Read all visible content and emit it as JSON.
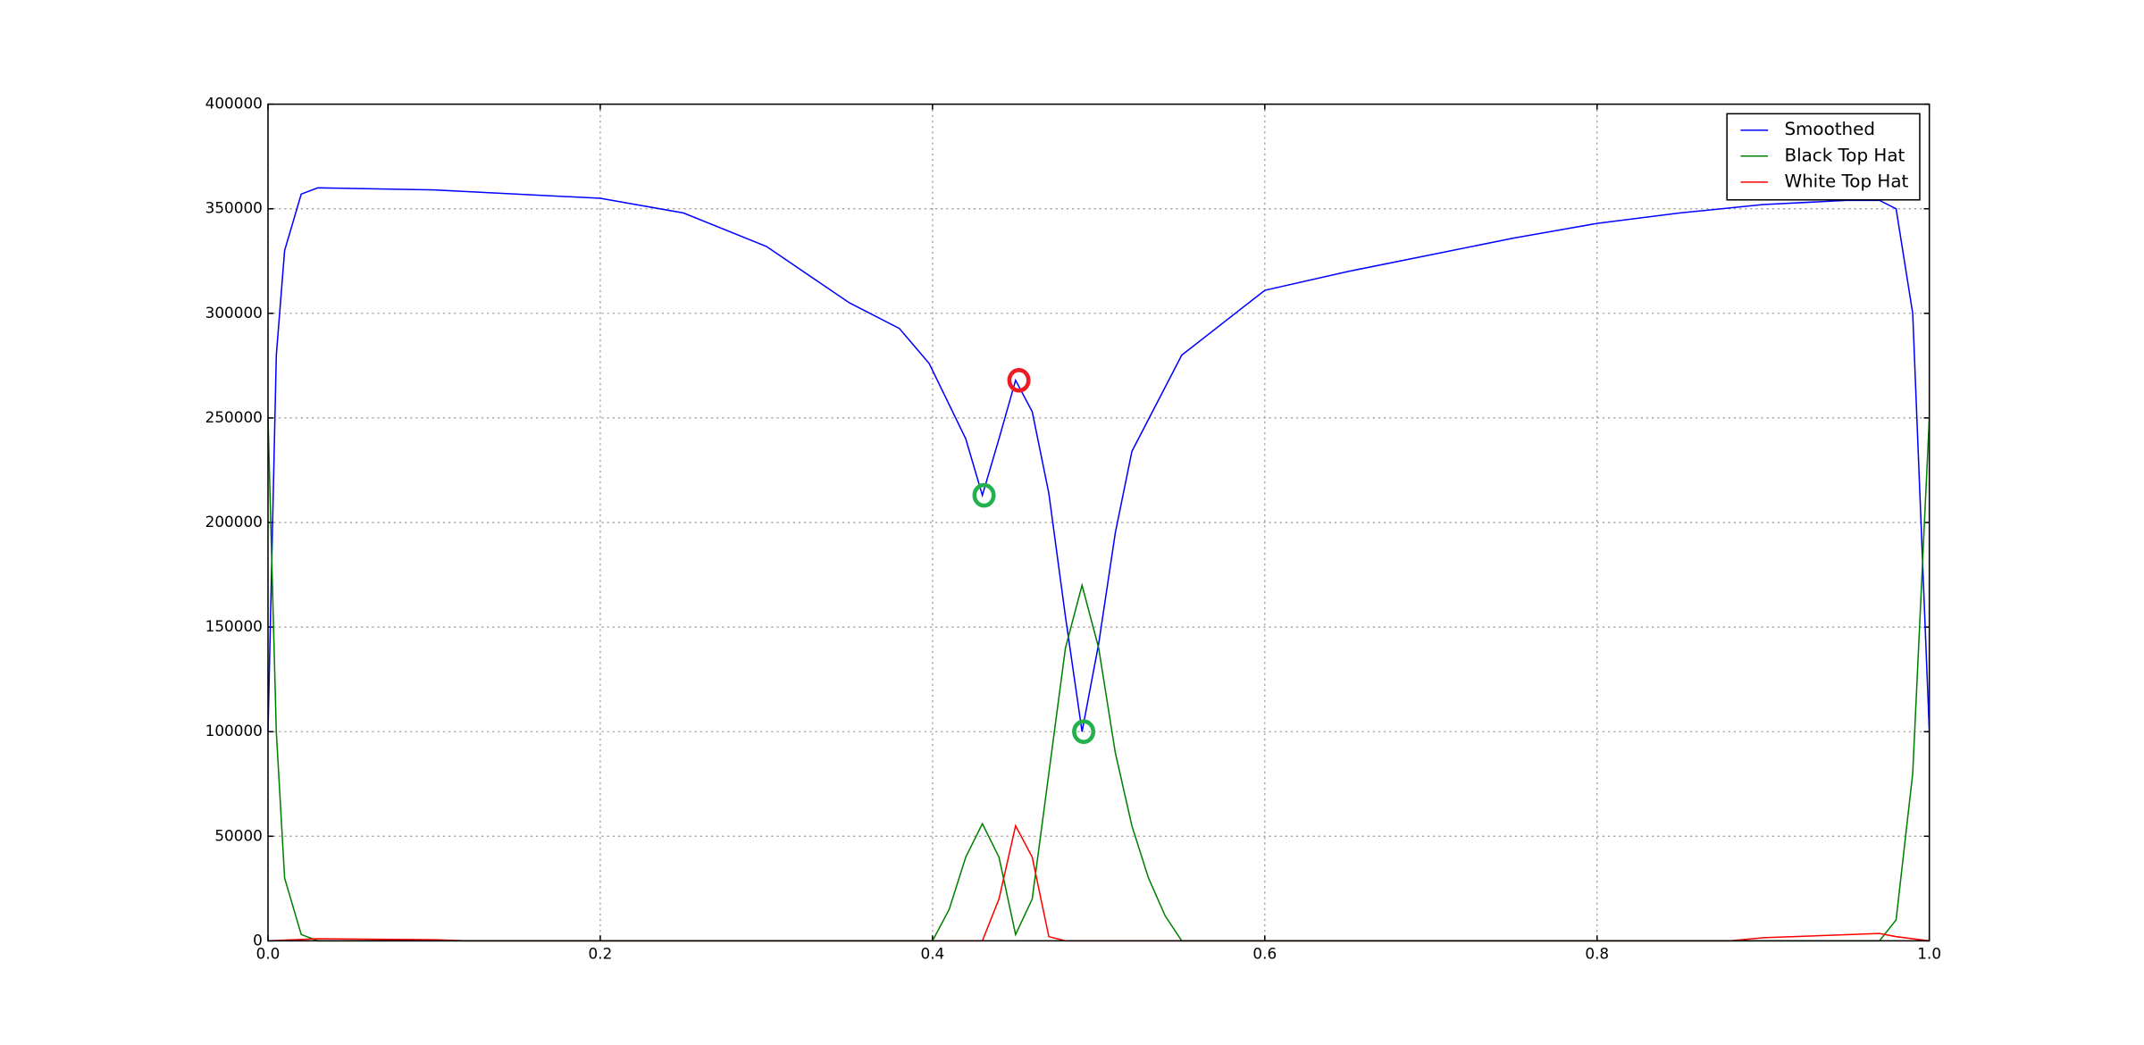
{
  "chart_data": {
    "type": "line",
    "xlim": [
      0,
      1
    ],
    "ylim": [
      0,
      400000
    ],
    "xticks": [
      {
        "value": 0,
        "label": "0.0"
      },
      0.2,
      0.4,
      0.6,
      0.8,
      {
        "value": 1,
        "label": "1.0"
      }
    ],
    "yticks": [
      0,
      50000,
      100000,
      150000,
      200000,
      250000,
      300000,
      350000,
      400000
    ],
    "grid": true,
    "legend": "upper right",
    "series": [
      {
        "name": "Smoothed",
        "color": "#0000ff",
        "x": [
          0,
          0.005,
          0.01,
          0.02,
          0.03,
          0.1,
          0.2,
          0.25,
          0.3,
          0.35,
          0.38,
          0.398,
          0.42,
          0.43,
          0.44,
          0.45,
          0.46,
          0.47,
          0.48,
          0.49,
          0.5,
          0.51,
          0.52,
          0.55,
          0.6,
          0.65,
          0.7,
          0.75,
          0.8,
          0.85,
          0.9,
          0.95,
          0.97,
          0.98,
          0.99,
          1.0
        ],
        "values": [
          100000,
          280000,
          330000,
          357000,
          360000,
          359000,
          355000,
          348000,
          332000,
          305000,
          292800,
          276000,
          240000,
          213000,
          240000,
          268000,
          253000,
          214000,
          155000,
          100000,
          142000,
          195000,
          234000,
          280000,
          311000,
          320000,
          328000,
          336000,
          343000,
          348000,
          352000,
          354000,
          354000,
          350000,
          300000,
          100000
        ]
      },
      {
        "name": "Black Top Hat",
        "color": "#008000",
        "x": [
          0,
          0.005,
          0.01,
          0.02,
          0.03,
          0.4,
          0.41,
          0.42,
          0.43,
          0.44,
          0.45,
          0.46,
          0.47,
          0.48,
          0.49,
          0.5,
          0.51,
          0.52,
          0.53,
          0.54,
          0.55,
          0.97,
          0.98,
          0.99,
          1.0
        ],
        "values": [
          250000,
          100000,
          30000,
          3000,
          0,
          0,
          15000,
          40000,
          56000,
          40000,
          3000,
          20000,
          80000,
          140000,
          170000,
          140000,
          90000,
          55000,
          30000,
          12000,
          0,
          0,
          10000,
          80000,
          250000
        ]
      },
      {
        "name": "White Top Hat",
        "color": "#ff0000",
        "x": [
          0,
          0.03,
          0.1,
          0.12,
          0.43,
          0.44,
          0.45,
          0.46,
          0.47,
          0.48,
          0.88,
          0.9,
          0.97,
          0.98,
          1.0
        ],
        "values": [
          0,
          1000,
          500,
          0,
          0,
          20000,
          55000,
          40000,
          2000,
          0,
          0,
          1500,
          3500,
          2000,
          0
        ]
      }
    ],
    "markers": [
      {
        "x": 0.431,
        "y": 213000,
        "color": "#22b14c"
      },
      {
        "x": 0.491,
        "y": 100000,
        "color": "#22b14c"
      },
      {
        "x": 0.452,
        "y": 268000,
        "color": "#ed1c24"
      }
    ]
  }
}
